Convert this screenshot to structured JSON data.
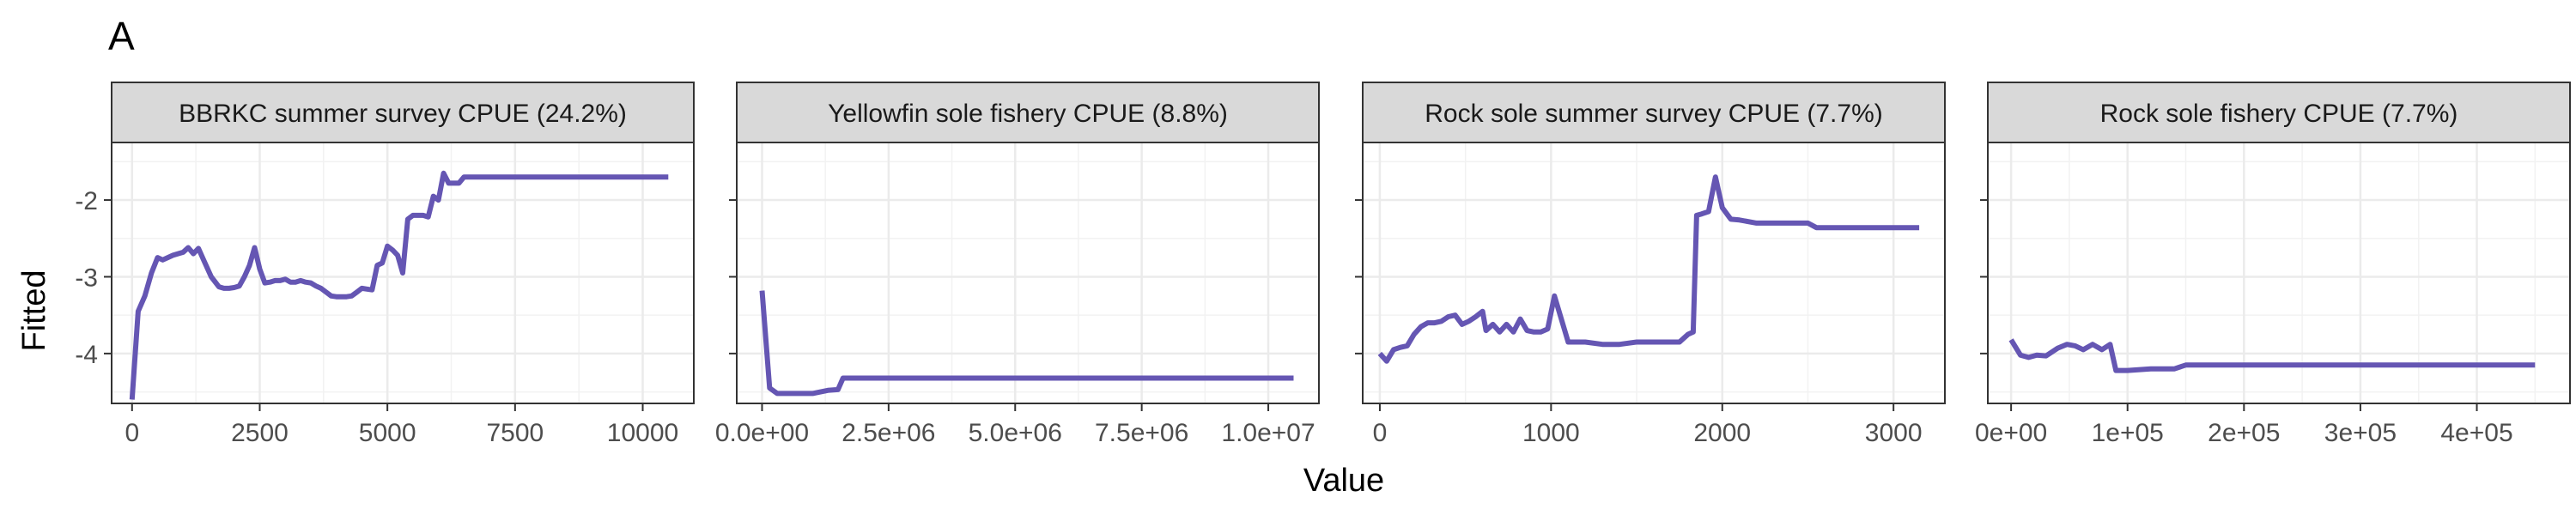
{
  "figure": {
    "tag": "A",
    "xlabel": "Value",
    "ylabel": "Fitted",
    "line_color": "#6556b3",
    "strip_fill": "#d9d9d9",
    "grid_color": "#ebebeb"
  },
  "chart_data": [
    {
      "type": "line",
      "title": "BBRKC summer survey CPUE (24.2%)",
      "xlim": [
        -400,
        11000
      ],
      "ylim": [
        -4.65,
        -1.25
      ],
      "x_ticks": [
        0,
        2500,
        5000,
        7500,
        10000
      ],
      "x_tick_labels": [
        "0",
        "2500",
        "5000",
        "7500",
        "10000"
      ],
      "y_ticks": [
        -4,
        -3,
        -2
      ],
      "y_tick_labels": [
        "-4",
        "-3",
        "-2"
      ],
      "series": [
        {
          "x": [
            0,
            120,
            250,
            380,
            500,
            600,
            700,
            800,
            900,
            1000,
            1100,
            1200,
            1300,
            1400,
            1550,
            1700,
            1800,
            1900,
            2000,
            2100,
            2200,
            2300,
            2400,
            2500,
            2600,
            2700,
            2800,
            2900,
            3000,
            3100,
            3200,
            3300,
            3400,
            3500,
            3600,
            3700,
            3800,
            3900,
            4000,
            4100,
            4200,
            4300,
            4400,
            4500,
            4600,
            4700,
            4800,
            4900,
            5000,
            5100,
            5200,
            5300,
            5400,
            5500,
            5600,
            5700,
            5800,
            5900,
            6000,
            6100,
            6200,
            6300,
            6400,
            6500,
            6600,
            6700,
            6800,
            6900,
            7000,
            7100,
            7200,
            7300,
            7400,
            7500,
            8000,
            9000,
            10000,
            10500
          ],
          "y": [
            -4.6,
            -3.45,
            -3.25,
            -2.95,
            -2.75,
            -2.78,
            -2.75,
            -2.72,
            -2.7,
            -2.68,
            -2.62,
            -2.7,
            -2.63,
            -2.78,
            -3.0,
            -3.13,
            -3.15,
            -3.15,
            -3.14,
            -3.12,
            -3.0,
            -2.85,
            -2.62,
            -2.9,
            -3.08,
            -3.07,
            -3.05,
            -3.05,
            -3.03,
            -3.07,
            -3.07,
            -3.05,
            -3.07,
            -3.08,
            -3.12,
            -3.15,
            -3.2,
            -3.25,
            -3.26,
            -3.26,
            -3.26,
            -3.25,
            -3.2,
            -3.15,
            -3.16,
            -3.17,
            -2.85,
            -2.82,
            -2.6,
            -2.65,
            -2.72,
            -2.95,
            -2.25,
            -2.2,
            -2.2,
            -2.2,
            -2.22,
            -1.95,
            -2.0,
            -1.65,
            -1.78,
            -1.78,
            -1.78,
            -1.7,
            -1.7,
            -1.7,
            -1.7,
            -1.7,
            -1.7,
            -1.7,
            -1.7,
            -1.7,
            -1.7,
            -1.7,
            -1.7,
            -1.7,
            -1.7,
            -1.7
          ]
        }
      ]
    },
    {
      "type": "line",
      "title": "Yellowfin sole fishery CPUE (8.8%)",
      "xlim": [
        -500000,
        11000000
      ],
      "ylim": [
        -4.65,
        -1.25
      ],
      "x_ticks": [
        0,
        2500000,
        5000000,
        7500000,
        10000000
      ],
      "x_tick_labels": [
        "0.0e+00",
        "2.5e+06",
        "5.0e+06",
        "7.5e+06",
        "1.0e+07"
      ],
      "y_ticks": [
        -4,
        -3,
        -2
      ],
      "y_tick_labels": [
        "",
        "",
        ""
      ],
      "series": [
        {
          "x": [
            0,
            150000,
            300000,
            1000000,
            1300000,
            1500000,
            1600000,
            10500000
          ],
          "y": [
            -3.18,
            -4.45,
            -4.52,
            -4.52,
            -4.48,
            -4.47,
            -4.32,
            -4.32
          ]
        }
      ]
    },
    {
      "type": "line",
      "title": "Rock sole summer survey CPUE (7.7%)",
      "xlim": [
        -100,
        3300
      ],
      "ylim": [
        -4.65,
        -1.25
      ],
      "x_ticks": [
        0,
        1000,
        2000,
        3000
      ],
      "x_tick_labels": [
        "0",
        "1000",
        "2000",
        "3000"
      ],
      "y_ticks": [
        -4,
        -3,
        -2
      ],
      "y_tick_labels": [
        "",
        "",
        ""
      ],
      "series": [
        {
          "x": [
            0,
            40,
            80,
            120,
            160,
            200,
            240,
            280,
            320,
            360,
            400,
            440,
            480,
            520,
            560,
            600,
            620,
            660,
            700,
            740,
            780,
            820,
            860,
            900,
            940,
            980,
            1020,
            1060,
            1100,
            1150,
            1200,
            1300,
            1400,
            1500,
            1600,
            1700,
            1750,
            1800,
            1830,
            1850,
            1880,
            1920,
            1960,
            2000,
            2050,
            2100,
            2200,
            2400,
            2500,
            2550,
            3000,
            3150
          ],
          "y": [
            -4.0,
            -4.1,
            -3.95,
            -3.92,
            -3.9,
            -3.75,
            -3.65,
            -3.6,
            -3.6,
            -3.58,
            -3.52,
            -3.5,
            -3.62,
            -3.58,
            -3.52,
            -3.45,
            -3.7,
            -3.62,
            -3.72,
            -3.62,
            -3.72,
            -3.55,
            -3.7,
            -3.72,
            -3.72,
            -3.68,
            -3.25,
            -3.55,
            -3.85,
            -3.85,
            -3.85,
            -3.88,
            -3.88,
            -3.85,
            -3.85,
            -3.85,
            -3.85,
            -3.75,
            -3.72,
            -2.2,
            -2.18,
            -2.15,
            -1.7,
            -2.1,
            -2.25,
            -2.26,
            -2.3,
            -2.3,
            -2.3,
            -2.36,
            -2.36,
            -2.36
          ]
        }
      ]
    },
    {
      "type": "line",
      "title": "Rock sole fishery CPUE (7.7%)",
      "xlim": [
        -20000,
        480000
      ],
      "ylim": [
        -4.65,
        -1.25
      ],
      "x_ticks": [
        0,
        100000,
        200000,
        300000,
        400000
      ],
      "x_tick_labels": [
        "0e+00",
        "1e+05",
        "2e+05",
        "3e+05",
        "4e+05"
      ],
      "y_ticks": [
        -4,
        -3,
        -2
      ],
      "y_tick_labels": [
        "",
        "",
        ""
      ],
      "series": [
        {
          "x": [
            0,
            8000,
            15000,
            22000,
            30000,
            40000,
            48000,
            55000,
            62000,
            70000,
            78000,
            85000,
            90000,
            100000,
            120000,
            140000,
            150000,
            160000,
            200000,
            300000,
            400000,
            450000
          ],
          "y": [
            -3.82,
            -4.02,
            -4.05,
            -4.02,
            -4.03,
            -3.93,
            -3.88,
            -3.9,
            -3.95,
            -3.88,
            -3.95,
            -3.88,
            -4.22,
            -4.22,
            -4.2,
            -4.2,
            -4.15,
            -4.15,
            -4.15,
            -4.15,
            -4.15,
            -4.15
          ]
        }
      ]
    }
  ]
}
